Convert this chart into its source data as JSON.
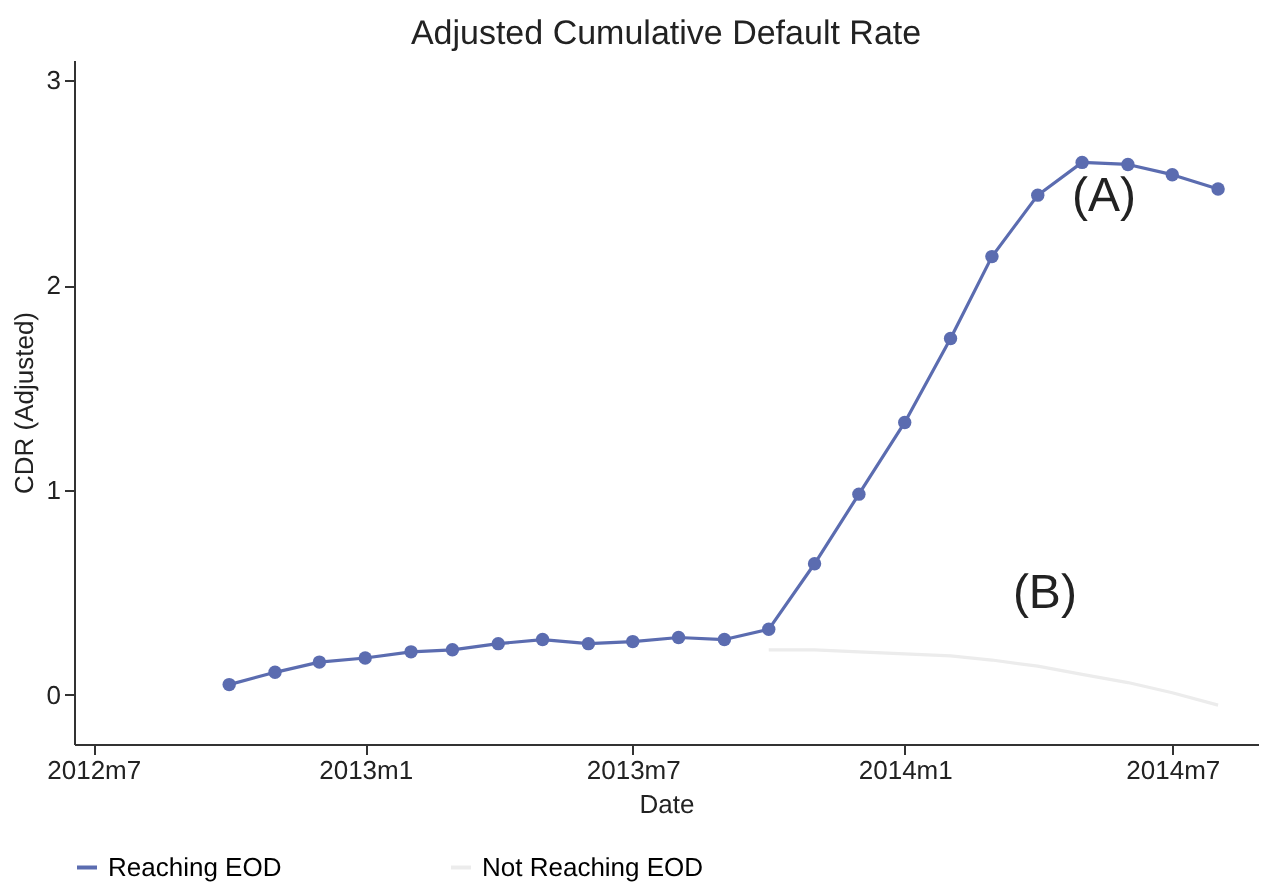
{
  "chart_data": {
    "type": "line",
    "title": "Adjusted Cumulative Default Rate",
    "xlabel": "Date",
    "ylabel": "CDR (Adjusted)",
    "xlim": [
      "2012-06-18",
      "2014-08-28"
    ],
    "ylim": [
      -0.24,
      3.1
    ],
    "xticks": [
      {
        "value": "2012-07",
        "label": "2012m7"
      },
      {
        "value": "2013-01",
        "label": "2013m1"
      },
      {
        "value": "2013-07",
        "label": "2013m7"
      },
      {
        "value": "2014-01",
        "label": "2014m1"
      },
      {
        "value": "2014-07",
        "label": "2014m7"
      }
    ],
    "yticks": [
      0,
      1,
      2,
      3
    ],
    "series": [
      {
        "name": "Reaching EOD",
        "color": "#5b6cb0",
        "marker": "circle",
        "x": [
          "2012-10",
          "2012-11",
          "2012-12",
          "2013-01",
          "2013-02",
          "2013-03",
          "2013-04",
          "2013-05",
          "2013-06",
          "2013-07",
          "2013-08",
          "2013-09",
          "2013-10",
          "2013-11",
          "2013-12",
          "2014-01",
          "2014-02",
          "2014-03",
          "2014-04",
          "2014-05",
          "2014-06",
          "2014-07",
          "2014-08"
        ],
        "values": [
          0.05,
          0.11,
          0.16,
          0.18,
          0.21,
          0.22,
          0.25,
          0.27,
          0.25,
          0.26,
          0.28,
          0.27,
          0.32,
          0.64,
          0.98,
          1.33,
          1.74,
          2.14,
          2.44,
          2.6,
          2.59,
          2.54,
          2.47
        ]
      },
      {
        "name": "Not Reaching EOD",
        "color": "#ececec",
        "marker": "none",
        "x": [
          "2013-10",
          "2013-11",
          "2013-12",
          "2014-01",
          "2014-02",
          "2014-03",
          "2014-04",
          "2014-05",
          "2014-06",
          "2014-07",
          "2014-08"
        ],
        "values": [
          0.22,
          0.22,
          0.21,
          0.2,
          0.19,
          0.17,
          0.14,
          0.1,
          0.06,
          0.01,
          -0.05
        ]
      }
    ],
    "annotations": [
      "(A)",
      "(B)"
    ],
    "legend": "bottom",
    "grid": false
  }
}
